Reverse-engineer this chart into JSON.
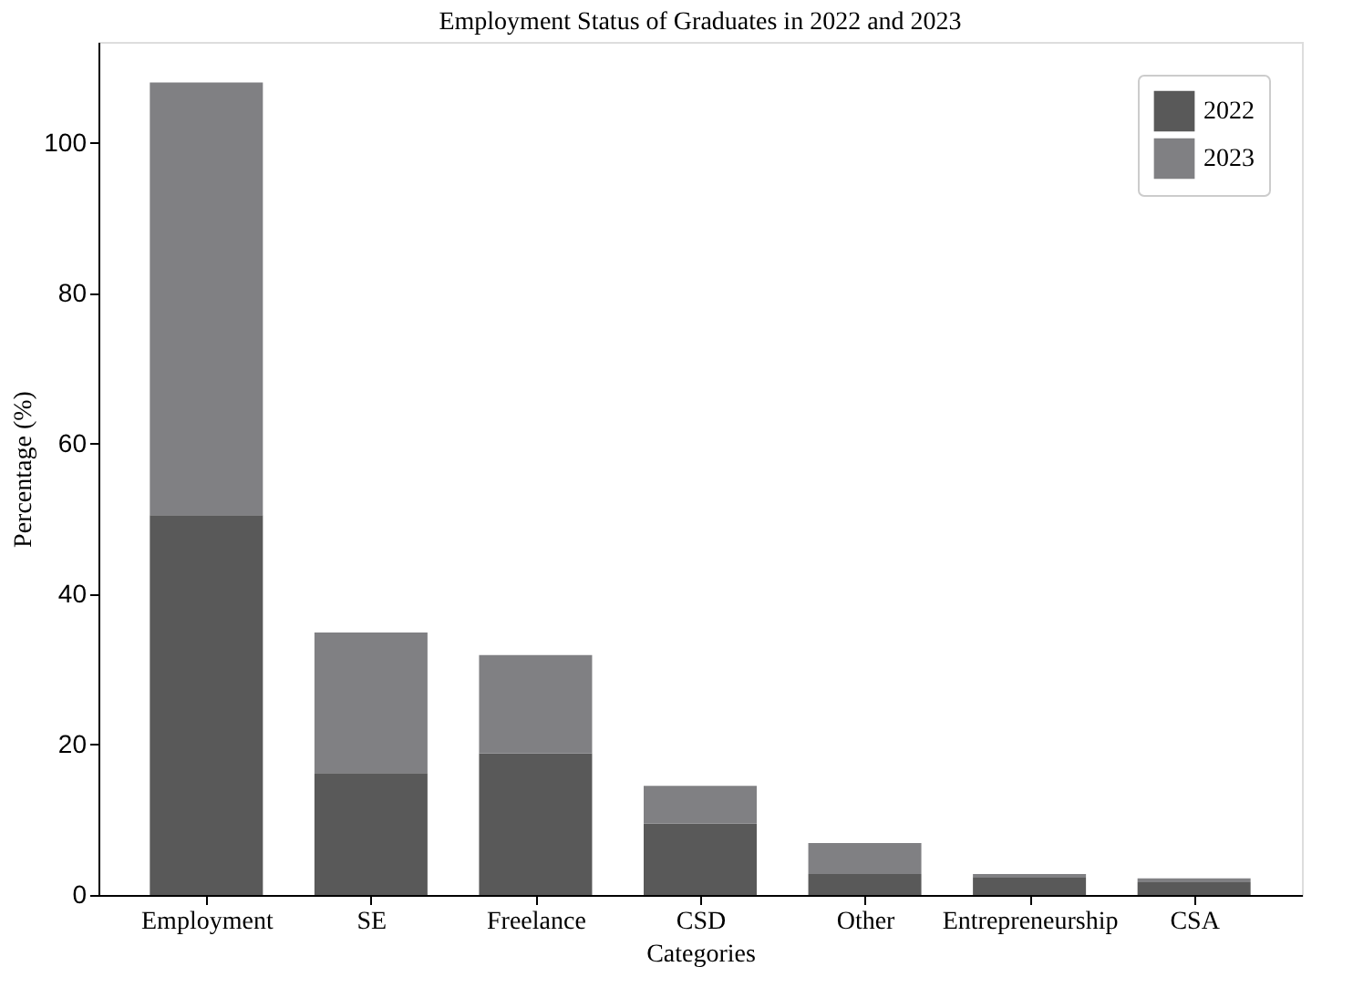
{
  "chart_data": {
    "type": "bar",
    "title": "Employment Status of Graduates in 2022 and 2023",
    "xlabel": "Categories",
    "ylabel": "Percentage (%)",
    "categories": [
      "Employment",
      "SE",
      "Freelance",
      "CSD",
      "Other",
      "Entrepreneurship",
      "CSA"
    ],
    "series": [
      {
        "name": "2022",
        "color": "#595959",
        "values": [
          50.5,
          16.2,
          18.8,
          9.5,
          2.8,
          2.3,
          1.7
        ]
      },
      {
        "name": "2023",
        "color": "#808083",
        "values": [
          57.5,
          18.7,
          13.1,
          5.0,
          4.1,
          0.5,
          0.5
        ]
      }
    ],
    "stacked": true,
    "ylim": [
      0,
      113.4
    ],
    "yticks": [
      0,
      20,
      40,
      60,
      80,
      100
    ],
    "grid": false,
    "legend": "top right"
  }
}
